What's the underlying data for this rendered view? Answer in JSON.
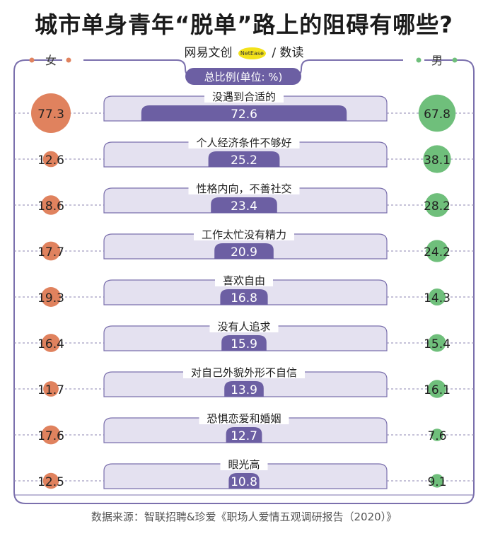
{
  "title": "城市单身青年“脱单”路上的阻碍有哪些?",
  "logo": {
    "brand": "网易文创",
    "badge": "NetEase",
    "sep": "/",
    "sub": "数读"
  },
  "source": "数据来源：智联招聘&珍爱《职场人爱情五观调研报告（2020）》",
  "chart_data": {
    "type": "bar",
    "title": "总比例(单位: %)",
    "left_label": "女",
    "right_label": "男",
    "categories": [
      "没遇到合适的",
      "个人经济条件不够好",
      "性格内向，不善社交",
      "工作太忙没有精力",
      "喜欢自由",
      "没有人追求",
      "对自己外貌外形不自信",
      "恐惧恋爱和婚姻",
      "眼光高"
    ],
    "series": [
      {
        "name": "总比例",
        "values": [
          72.6,
          25.2,
          23.4,
          20.9,
          16.8,
          15.9,
          13.9,
          12.7,
          10.8
        ]
      },
      {
        "name": "女",
        "values": [
          77.3,
          12.6,
          18.6,
          17.7,
          19.3,
          16.4,
          11.7,
          17.6,
          12.5
        ]
      },
      {
        "name": "男",
        "values": [
          67.8,
          38.1,
          28.2,
          24.2,
          14.3,
          15.4,
          16.1,
          7.6,
          9.1
        ]
      }
    ],
    "colors": {
      "total": "#6c5fa3",
      "track": "#e4e1f0",
      "female": "#e0825e",
      "male": "#6fbf7b",
      "frame": "#7b70ad"
    }
  }
}
